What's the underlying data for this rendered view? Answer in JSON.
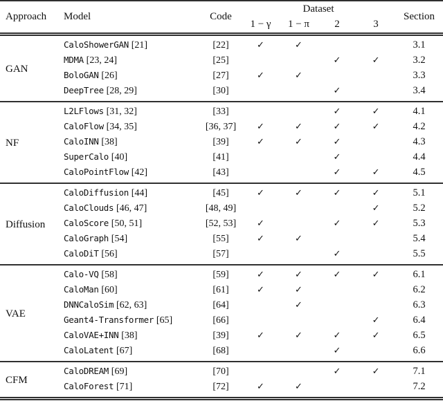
{
  "table": {
    "checkmark": "✓",
    "headers": {
      "approach": "Approach",
      "model": "Model",
      "code": "Code",
      "dataset": "Dataset",
      "dataset_cols": [
        "1 − γ",
        "1 − π",
        "2",
        "3"
      ],
      "section": "Section"
    },
    "groups": [
      {
        "approach": "GAN",
        "rows": [
          {
            "model": "CaloShowerGAN",
            "model_refs": "[21]",
            "code": "[22]",
            "datasets": [
              true,
              true,
              false,
              false
            ],
            "section": "3.1"
          },
          {
            "model": "MDMA",
            "model_refs": "[23, 24]",
            "code": "[25]",
            "datasets": [
              false,
              false,
              true,
              true
            ],
            "section": "3.2"
          },
          {
            "model": "BoloGAN",
            "model_refs": "[26]",
            "code": "[27]",
            "datasets": [
              true,
              true,
              false,
              false
            ],
            "section": "3.3"
          },
          {
            "model": "DeepTree",
            "model_refs": "[28, 29]",
            "code": "[30]",
            "datasets": [
              false,
              false,
              true,
              false
            ],
            "section": "3.4"
          }
        ]
      },
      {
        "approach": "NF",
        "rows": [
          {
            "model": "L2LFlows",
            "model_refs": "[31, 32]",
            "code": "[33]",
            "datasets": [
              false,
              false,
              true,
              true
            ],
            "section": "4.1"
          },
          {
            "model": "CaloFlow",
            "model_refs": "[34, 35]",
            "code": "[36, 37]",
            "datasets": [
              true,
              true,
              true,
              true
            ],
            "section": "4.2"
          },
          {
            "model": "CaloINN",
            "model_refs": "[38]",
            "code": "[39]",
            "datasets": [
              true,
              true,
              true,
              false
            ],
            "section": "4.3"
          },
          {
            "model": "SuperCalo",
            "model_refs": "[40]",
            "code": "[41]",
            "datasets": [
              false,
              false,
              true,
              false
            ],
            "section": "4.4"
          },
          {
            "model": "CaloPointFlow",
            "model_refs": "[42]",
            "code": "[43]",
            "datasets": [
              false,
              false,
              true,
              true
            ],
            "section": "4.5"
          }
        ]
      },
      {
        "approach": "Diffusion",
        "rows": [
          {
            "model": "CaloDiffusion",
            "model_refs": "[44]",
            "code": "[45]",
            "datasets": [
              true,
              true,
              true,
              true
            ],
            "section": "5.1"
          },
          {
            "model": "CaloClouds",
            "model_refs": "[46, 47]",
            "code": "[48, 49]",
            "datasets": [
              false,
              false,
              false,
              true
            ],
            "section": "5.2"
          },
          {
            "model": "CaloScore",
            "model_refs": "[50, 51]",
            "code": "[52, 53]",
            "datasets": [
              true,
              false,
              true,
              true
            ],
            "section": "5.3"
          },
          {
            "model": "CaloGraph",
            "model_refs": "[54]",
            "code": "[55]",
            "datasets": [
              true,
              true,
              false,
              false
            ],
            "section": "5.4"
          },
          {
            "model": "CaloDiT",
            "model_refs": "[56]",
            "code": "[57]",
            "datasets": [
              false,
              false,
              true,
              false
            ],
            "section": "5.5"
          }
        ]
      },
      {
        "approach": "VAE",
        "rows": [
          {
            "model": "Calo-VQ",
            "model_refs": "[58]",
            "code": "[59]",
            "datasets": [
              true,
              true,
              true,
              true
            ],
            "section": "6.1"
          },
          {
            "model": "CaloMan",
            "model_refs": "[60]",
            "code": "[61]",
            "datasets": [
              true,
              true,
              false,
              false
            ],
            "section": "6.2"
          },
          {
            "model": "DNNCaloSim",
            "model_refs": "[62, 63]",
            "code": "[64]",
            "datasets": [
              false,
              true,
              false,
              false
            ],
            "section": "6.3"
          },
          {
            "model": "Geant4-Transformer",
            "model_refs": "[65]",
            "code": "[66]",
            "datasets": [
              false,
              false,
              false,
              true
            ],
            "section": "6.4"
          },
          {
            "model": "CaloVAE+INN",
            "model_refs": "[38]",
            "code": "[39]",
            "datasets": [
              true,
              true,
              true,
              true
            ],
            "section": "6.5"
          },
          {
            "model": "CaloLatent",
            "model_refs": "[67]",
            "code": "[68]",
            "datasets": [
              false,
              false,
              true,
              false
            ],
            "section": "6.6"
          }
        ]
      },
      {
        "approach": "CFM",
        "rows": [
          {
            "model": "CaloDREAM",
            "model_refs": "[69]",
            "code": "[70]",
            "datasets": [
              false,
              false,
              true,
              true
            ],
            "section": "7.1"
          },
          {
            "model": "CaloForest",
            "model_refs": "[71]",
            "code": "[72]",
            "datasets": [
              true,
              true,
              false,
              false
            ],
            "section": "7.2"
          }
        ]
      }
    ]
  },
  "colors": {
    "text": "#111111",
    "rule": "#2f2f2f",
    "background": "#ffffff"
  }
}
